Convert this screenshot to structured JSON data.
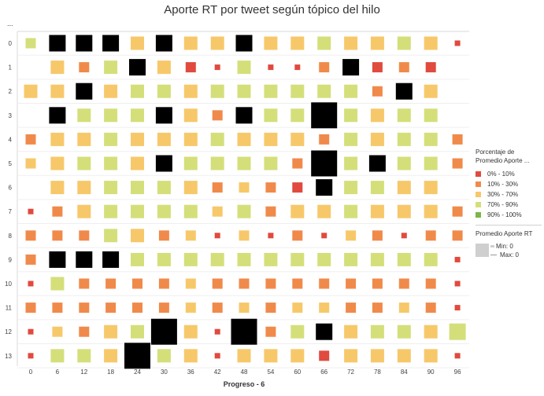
{
  "chart_data": {
    "type": "scatter",
    "title": "Aporte RT por tweet según tópico del hilo",
    "xlabel": "Progreso - 6",
    "ylabel": "...",
    "x_ticks": [
      "0",
      "6",
      "12",
      "18",
      "24",
      "30",
      "36",
      "42",
      "48",
      "54",
      "60",
      "66",
      "72",
      "78",
      "84",
      "90",
      "96"
    ],
    "y_ticks": [
      "0",
      "1",
      "2",
      "3",
      "4",
      "5",
      "6",
      "7",
      "8",
      "9",
      "10",
      "11",
      "12",
      "13"
    ],
    "color_legend": {
      "title": "Porcentaje de Promedio Aporte ...",
      "items": [
        {
          "label": "0% - 10%",
          "color": "#e04a3f"
        },
        {
          "label": "10% - 30%",
          "color": "#f08a4b"
        },
        {
          "label": "30% - 70%",
          "color": "#f7c86a"
        },
        {
          "label": "70% - 90%",
          "color": "#d4df7a"
        },
        {
          "label": "90% - 100%",
          "color": "#7ab648"
        }
      ]
    },
    "size_legend": {
      "title": "Promedio Aporte RT",
      "min_label": "Min: 0",
      "max_label": "Max: 0"
    },
    "grid": [
      [
        3,
        5,
        5,
        5,
        2,
        5,
        2,
        2,
        5,
        2,
        2,
        3,
        2,
        2,
        3,
        2,
        0
      ],
      [
        -1,
        2,
        1,
        3,
        5,
        2,
        0,
        0,
        3,
        0,
        0,
        1,
        5,
        0,
        1,
        0,
        -1
      ],
      [
        2,
        2,
        5,
        2,
        3,
        3,
        2,
        3,
        3,
        3,
        3,
        3,
        3,
        1,
        5,
        2,
        -1
      ],
      [
        -1,
        5,
        3,
        3,
        3,
        5,
        2,
        1,
        5,
        3,
        3,
        5,
        3,
        2,
        3,
        3,
        -1
      ],
      [
        1,
        2,
        2,
        3,
        2,
        2,
        2,
        3,
        2,
        2,
        2,
        1,
        3,
        2,
        3,
        3,
        1
      ],
      [
        2,
        2,
        3,
        3,
        2,
        5,
        3,
        3,
        3,
        3,
        1,
        5,
        3,
        5,
        3,
        3,
        1
      ],
      [
        -1,
        2,
        2,
        3,
        3,
        3,
        2,
        1,
        2,
        1,
        0,
        5,
        3,
        3,
        2,
        2,
        -1
      ],
      [
        0,
        1,
        2,
        3,
        3,
        3,
        3,
        2,
        3,
        1,
        2,
        2,
        3,
        2,
        2,
        2,
        1
      ],
      [
        1,
        1,
        1,
        3,
        2,
        1,
        2,
        0,
        2,
        0,
        1,
        0,
        2,
        1,
        0,
        1,
        1
      ],
      [
        1,
        5,
        5,
        5,
        3,
        3,
        3,
        3,
        3,
        3,
        3,
        3,
        3,
        3,
        3,
        3,
        0
      ],
      [
        0,
        3,
        1,
        1,
        1,
        1,
        2,
        1,
        1,
        1,
        1,
        1,
        1,
        1,
        1,
        1,
        0
      ],
      [
        1,
        1,
        1,
        1,
        1,
        1,
        2,
        1,
        2,
        1,
        2,
        2,
        1,
        1,
        2,
        1,
        0
      ],
      [
        0,
        2,
        1,
        2,
        3,
        5,
        2,
        0,
        5,
        1,
        3,
        5,
        2,
        3,
        3,
        2,
        3
      ],
      [
        0,
        3,
        3,
        2,
        5,
        3,
        2,
        0,
        2,
        2,
        2,
        0,
        2,
        2,
        2,
        2,
        0
      ]
    ],
    "sizes": [
      [
        2,
        4,
        4,
        4,
        3,
        4,
        3,
        3,
        4,
        3,
        3,
        3,
        3,
        3,
        3,
        3,
        1
      ],
      [
        0,
        3,
        2,
        3,
        4,
        3,
        2,
        1,
        3,
        1,
        1,
        2,
        4,
        2,
        2,
        2,
        0
      ],
      [
        3,
        3,
        4,
        3,
        3,
        3,
        3,
        3,
        3,
        3,
        3,
        3,
        3,
        2,
        4,
        3,
        0
      ],
      [
        0,
        4,
        3,
        3,
        3,
        4,
        3,
        2,
        4,
        3,
        3,
        5,
        3,
        3,
        3,
        3,
        0
      ],
      [
        2,
        3,
        3,
        3,
        3,
        3,
        3,
        3,
        3,
        3,
        3,
        2,
        3,
        3,
        3,
        3,
        2
      ],
      [
        2,
        3,
        3,
        3,
        3,
        4,
        3,
        3,
        3,
        3,
        2,
        5,
        3,
        4,
        3,
        3,
        2
      ],
      [
        0,
        3,
        3,
        3,
        3,
        3,
        3,
        2,
        2,
        2,
        2,
        4,
        3,
        3,
        3,
        3,
        0
      ],
      [
        1,
        2,
        3,
        3,
        3,
        3,
        3,
        2,
        3,
        2,
        3,
        3,
        3,
        3,
        3,
        3,
        2
      ],
      [
        2,
        2,
        2,
        3,
        3,
        2,
        2,
        1,
        2,
        1,
        2,
        1,
        2,
        2,
        1,
        2,
        2
      ],
      [
        2,
        4,
        4,
        4,
        3,
        3,
        3,
        3,
        3,
        3,
        3,
        3,
        3,
        3,
        3,
        3,
        1
      ],
      [
        1,
        3,
        2,
        2,
        2,
        2,
        2,
        2,
        2,
        2,
        2,
        2,
        2,
        2,
        2,
        2,
        1
      ],
      [
        2,
        2,
        2,
        2,
        2,
        2,
        2,
        2,
        2,
        2,
        2,
        2,
        2,
        2,
        2,
        2,
        1
      ],
      [
        1,
        2,
        2,
        3,
        3,
        5,
        3,
        1,
        5,
        2,
        3,
        4,
        3,
        3,
        3,
        3,
        4
      ],
      [
        1,
        3,
        3,
        3,
        5,
        3,
        3,
        1,
        3,
        3,
        3,
        2,
        3,
        3,
        3,
        3,
        1
      ]
    ]
  }
}
